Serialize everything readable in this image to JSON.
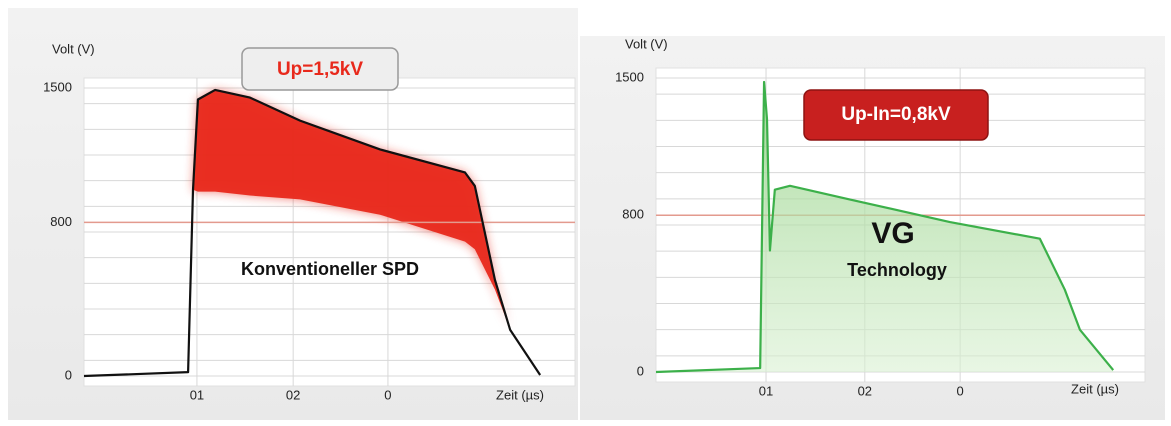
{
  "chart_data": [
    {
      "type": "line",
      "y_label": "Volt (V)",
      "x_label": "Zeit (µs)",
      "annotations": [
        "Up=1,5kV",
        "Konventioneller SPD"
      ],
      "xlim": [
        0,
        100
      ],
      "ylim": [
        0,
        1500
      ],
      "xticks": [
        {
          "value": 23,
          "label": "01"
        },
        {
          "value": 42.6,
          "label": "02"
        },
        {
          "value": 61.9,
          "label": "0"
        }
      ],
      "yticks": [
        0,
        800,
        1500
      ],
      "reference_line": 800,
      "reference_color": "#e39a8e",
      "x": [
        0,
        21.2,
        22.2,
        23.2,
        26.7,
        33.8,
        44,
        60.3,
        77.6,
        79.6,
        83.7,
        86.8,
        92.9
      ],
      "series": [
        {
          "color": "#111111",
          "values": [
            0,
            20,
            970,
            1440,
            1490,
            1450,
            1330,
            1180,
            1060,
            990,
            500,
            240,
            5
          ]
        }
      ],
      "band": {
        "color": "#e8291c",
        "lower": [
          null,
          null,
          970,
          960,
          960,
          940,
          920,
          840,
          700,
          660,
          450,
          240,
          5
        ]
      }
    },
    {
      "type": "line",
      "y_label": "Volt (V)",
      "x_label": "Zeit (µs)",
      "annotations": [
        "Up-In=0,8kV",
        "VG",
        "Technology"
      ],
      "xlim": [
        0,
        100
      ],
      "ylim": [
        0,
        1500
      ],
      "xticks": [
        {
          "value": 22.5,
          "label": "01"
        },
        {
          "value": 42.7,
          "label": "02"
        },
        {
          "value": 62.2,
          "label": "0"
        }
      ],
      "yticks": [
        0,
        800,
        1500
      ],
      "reference_line": 800,
      "reference_color": "#e39a8e",
      "x": [
        0,
        21.3,
        22.1,
        22.7,
        23.3,
        24.3,
        27.4,
        39.7,
        60.1,
        78.5,
        83.6,
        86.7,
        93.5
      ],
      "series": [
        {
          "color": "#3cb04a",
          "values": [
            0,
            20,
            1480,
            1290,
            620,
            930,
            950,
            880,
            765,
            680,
            420,
            215,
            10
          ]
        }
      ],
      "fill": "url(#greenfill)"
    }
  ]
}
